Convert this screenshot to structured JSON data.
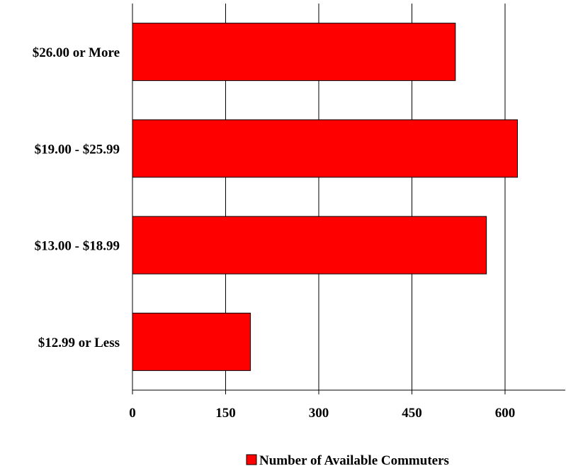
{
  "chart_data": {
    "type": "bar",
    "orientation": "horizontal",
    "title": "",
    "xlabel": "",
    "ylabel": "",
    "categories": [
      "$26.00 or More",
      "$19.00 - $25.99",
      "$13.00 - $18.99",
      "$12.99 or Less"
    ],
    "series": [
      {
        "name": "Number of Available Commuters",
        "values": [
          520,
          620,
          570,
          190
        ],
        "color": "#ff0000"
      }
    ],
    "xlim": [
      0,
      697
    ],
    "xticks": [
      0,
      150,
      300,
      450,
      600
    ],
    "xtick_labels": [
      "0",
      "150",
      "300",
      "450",
      "600"
    ],
    "grid": "vertical",
    "legend_position": "bottom-center"
  }
}
